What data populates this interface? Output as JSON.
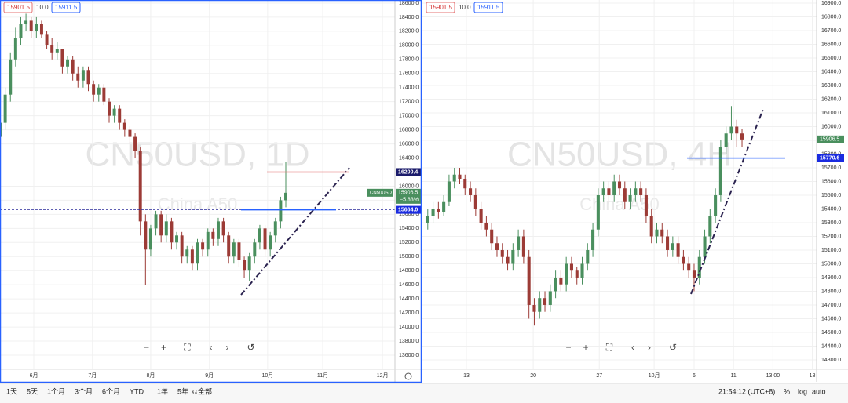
{
  "toolbar": {
    "ranges": [
      "1天",
      "5天",
      "1个月",
      "3个月",
      "6个月",
      "YTD",
      "1年",
      "5年",
      "全部"
    ],
    "time": "21:54:12 (UTC+8)",
    "scale_options": [
      "%",
      "log",
      "auto"
    ]
  },
  "chart_data": [
    {
      "type": "candlestick",
      "title": "CN50USD, 1D",
      "subtitle": "China A50",
      "symbol_tag": "CN50USD",
      "bid": "15901.5",
      "spread": "10.0",
      "ask": "15911.5",
      "last": 15906.5,
      "change_label": "−5.83%",
      "up_color": "#4a8f5e",
      "down_color": "#9c3b36",
      "grid": true,
      "levels": [
        {
          "value": 16200.4,
          "label": "16200.4",
          "segment_color": "#e57373"
        },
        {
          "value": 15664,
          "label": "15664.0",
          "segment_color": "#2962ff"
        }
      ],
      "xlim": [
        0,
        76
      ],
      "ylim": [
        13366,
        18644
      ],
      "xticks": [
        {
          "value": 6.5,
          "label": "6月"
        },
        {
          "value": 17.8,
          "label": "7月"
        },
        {
          "value": 29,
          "label": "8月"
        },
        {
          "value": 40.3,
          "label": "9月"
        },
        {
          "value": 51.5,
          "label": "10月"
        },
        {
          "value": 62.1,
          "label": "11月"
        },
        {
          "value": 73.6,
          "label": "12月"
        }
      ],
      "yticks": [
        {
          "value": 13600,
          "label": "13600.0"
        },
        {
          "value": 13800,
          "label": "13800.0"
        },
        {
          "value": 14000,
          "label": "14000.0"
        },
        {
          "value": 14200,
          "label": "14200.0"
        },
        {
          "value": 14400,
          "label": "14400.0"
        },
        {
          "value": 14600,
          "label": "14600.0"
        },
        {
          "value": 14800,
          "label": "14800.0"
        },
        {
          "value": 15000,
          "label": "15000.0"
        },
        {
          "value": 15200,
          "label": "15200.0"
        },
        {
          "value": 15400,
          "label": "15400.0"
        },
        {
          "value": 15600,
          "label": "15600.0"
        },
        {
          "value": 15800,
          "label": "15800.0"
        },
        {
          "value": 16000,
          "label": "16000.0"
        },
        {
          "value": 16200,
          "label": "16200.0"
        },
        {
          "value": 16400,
          "label": "16400.0"
        },
        {
          "value": 16600,
          "label": "16600.0"
        },
        {
          "value": 16800,
          "label": "16800.0"
        },
        {
          "value": 17000,
          "label": "17000.0"
        },
        {
          "value": 17200,
          "label": "17200.0"
        },
        {
          "value": 17400,
          "label": "17400.0"
        },
        {
          "value": 17600,
          "label": "17600.0"
        },
        {
          "value": 17800,
          "label": "17800.0"
        },
        {
          "value": 18000,
          "label": "18000.0"
        },
        {
          "value": 18200,
          "label": "18200.0"
        },
        {
          "value": 18400,
          "label": "18400.0"
        },
        {
          "value": 18600,
          "label": "18600.0"
        }
      ],
      "open": [
        16700,
        16900,
        17300,
        17800,
        18100,
        18300,
        18350,
        18200,
        18300,
        18150,
        18000,
        17900,
        17950,
        17700,
        17800,
        17600,
        17500,
        17650,
        17450,
        17300,
        17400,
        17200,
        17000,
        17100,
        16900,
        16800,
        16700,
        16500,
        15500,
        15100,
        15400,
        15600,
        15300,
        15500,
        15200,
        15300,
        15000,
        15100,
        14900,
        15200,
        15100,
        15350,
        15250,
        15500,
        15300,
        15000,
        15200,
        14950,
        14800,
        15000,
        15200,
        15400,
        15100,
        15300,
        15500,
        15800
      ],
      "high": [
        17000,
        17400,
        17900,
        18250,
        18400,
        18450,
        18400,
        18400,
        18350,
        18200,
        18100,
        18050,
        17950,
        17850,
        17850,
        17700,
        17700,
        17700,
        17500,
        17450,
        17450,
        17250,
        17150,
        17150,
        16950,
        16850,
        16750,
        16550,
        15600,
        15450,
        15650,
        15650,
        15600,
        15550,
        15350,
        15350,
        15150,
        15150,
        15250,
        15250,
        15400,
        15400,
        15550,
        15550,
        15350,
        15250,
        15250,
        15000,
        15050,
        15250,
        15450,
        15450,
        15350,
        15550,
        15850,
        16350
      ],
      "low": [
        16600,
        16800,
        17200,
        17700,
        18000,
        18200,
        18100,
        18100,
        18100,
        17950,
        17800,
        17800,
        17600,
        17600,
        17500,
        17400,
        17400,
        17350,
        17200,
        17200,
        17150,
        16900,
        16900,
        16800,
        16700,
        16600,
        16400,
        15300,
        14600,
        15000,
        15300,
        15200,
        15200,
        15100,
        15100,
        14900,
        14900,
        14800,
        14800,
        15000,
        15000,
        15150,
        15150,
        15200,
        14900,
        14900,
        14850,
        14700,
        14650,
        14900,
        15100,
        15000,
        15000,
        15200,
        15400,
        15700
      ],
      "close": [
        16900,
        17300,
        17800,
        18100,
        18300,
        18350,
        18200,
        18300,
        18150,
        18000,
        17900,
        17950,
        17700,
        17800,
        17600,
        17500,
        17650,
        17450,
        17300,
        17400,
        17200,
        17000,
        17100,
        16900,
        16800,
        16700,
        16500,
        15500,
        15100,
        15400,
        15600,
        15300,
        15500,
        15200,
        15300,
        15000,
        15100,
        14900,
        15200,
        15100,
        15350,
        15250,
        15500,
        15300,
        15000,
        15200,
        14950,
        14800,
        15000,
        15200,
        15400,
        15100,
        15300,
        15500,
        15800,
        15906.5
      ]
    },
    {
      "type": "candlestick",
      "title": "CN50USD, 4H",
      "subtitle": "China A50",
      "bid": "15901.5",
      "spread": "10.0",
      "ask": "15911.5",
      "last": 15906.5,
      "up_color": "#4a8f5e",
      "down_color": "#9c3b36",
      "grid": true,
      "levels": [
        {
          "value": 15770.6,
          "label": "15770.6",
          "segment_color": "#2962ff"
        }
      ],
      "xlim": [
        -1,
        73
      ],
      "ylim": [
        14214,
        16923
      ],
      "xticks": [
        {
          "value": 7.25,
          "label": "13"
        },
        {
          "value": 19.8,
          "label": "20"
        },
        {
          "value": 32.2,
          "label": "27"
        },
        {
          "value": 42.5,
          "label": "10月"
        },
        {
          "value": 50,
          "label": "6"
        },
        {
          "value": 57.4,
          "label": "11"
        },
        {
          "value": 64.8,
          "label": "13:00"
        },
        {
          "value": 72.2,
          "label": "18"
        }
      ],
      "yticks": [
        {
          "value": 14300,
          "label": "14300.0"
        },
        {
          "value": 14400,
          "label": "14400.0"
        },
        {
          "value": 14500,
          "label": "14500.0"
        },
        {
          "value": 14600,
          "label": "14600.0"
        },
        {
          "value": 14700,
          "label": "14700.0"
        },
        {
          "value": 14800,
          "label": "14800.0"
        },
        {
          "value": 14900,
          "label": "14900.0"
        },
        {
          "value": 15000,
          "label": "15000.0"
        },
        {
          "value": 15100,
          "label": "15100.0"
        },
        {
          "value": 15200,
          "label": "15200.0"
        },
        {
          "value": 15300,
          "label": "15300.0"
        },
        {
          "value": 15400,
          "label": "15400.0"
        },
        {
          "value": 15500,
          "label": "15500.0"
        },
        {
          "value": 15600,
          "label": "15600.0"
        },
        {
          "value": 15700,
          "label": "15700.0"
        },
        {
          "value": 15800,
          "label": "15800.0"
        },
        {
          "value": 15900,
          "label": "15900.0"
        },
        {
          "value": 16000,
          "label": "16000.0"
        },
        {
          "value": 16100,
          "label": "16100.0"
        },
        {
          "value": 16200,
          "label": "16200.0"
        },
        {
          "value": 16300,
          "label": "16300.0"
        },
        {
          "value": 16400,
          "label": "16400.0"
        },
        {
          "value": 16500,
          "label": "16500.0"
        },
        {
          "value": 16600,
          "label": "16600.0"
        },
        {
          "value": 16700,
          "label": "16700.0"
        },
        {
          "value": 16800,
          "label": "16800.0"
        },
        {
          "value": 16900,
          "label": "16900.0"
        }
      ],
      "open": [
        15300,
        15350,
        15400,
        15380,
        15450,
        15600,
        15650,
        15620,
        15550,
        15500,
        15400,
        15300,
        15250,
        15150,
        15100,
        15050,
        15000,
        15100,
        15200,
        15050,
        14700,
        14650,
        14750,
        14700,
        14800,
        14900,
        14850,
        15000,
        14950,
        14900,
        15000,
        15100,
        15250,
        15500,
        15550,
        15500,
        15600,
        15550,
        15450,
        15500,
        15550,
        15500,
        15350,
        15200,
        15250,
        15200,
        15100,
        15150,
        15050,
        15000,
        14950,
        14900,
        15050,
        15200,
        15350,
        15500,
        15850,
        15950,
        16000,
        15950
      ],
      "high": [
        15400,
        15450,
        15450,
        15500,
        15650,
        15700,
        15700,
        15650,
        15600,
        15550,
        15450,
        15350,
        15300,
        15200,
        15150,
        15100,
        15150,
        15250,
        15250,
        15100,
        14750,
        14800,
        14800,
        14850,
        14950,
        14950,
        15050,
        15050,
        14980,
        15050,
        15150,
        15300,
        15550,
        15600,
        15600,
        15650,
        15650,
        15600,
        15550,
        15600,
        15600,
        15550,
        15400,
        15300,
        15300,
        15250,
        15200,
        15200,
        15100,
        15050,
        15000,
        15100,
        15250,
        15400,
        15550,
        15900,
        16000,
        16150,
        16050,
        15980
      ],
      "low": [
        15250,
        15300,
        15330,
        15350,
        15420,
        15550,
        15580,
        15500,
        15450,
        15350,
        15250,
        15200,
        15100,
        15050,
        15000,
        14950,
        14950,
        15050,
        15000,
        14600,
        14550,
        14600,
        14650,
        14650,
        14750,
        14800,
        14800,
        14900,
        14850,
        14850,
        14950,
        15050,
        15200,
        15450,
        15450,
        15450,
        15500,
        15400,
        15400,
        15450,
        15450,
        15300,
        15150,
        15150,
        15150,
        15050,
        15050,
        15000,
        14950,
        14900,
        14800,
        14850,
        15000,
        15150,
        15300,
        15450,
        15800,
        15900,
        15850,
        15850
      ],
      "close": [
        15350,
        15400,
        15380,
        15450,
        15600,
        15650,
        15620,
        15550,
        15500,
        15400,
        15300,
        15250,
        15150,
        15100,
        15050,
        15000,
        15100,
        15200,
        15050,
        14700,
        14650,
        14750,
        14700,
        14800,
        14900,
        14850,
        15000,
        14950,
        14900,
        15000,
        15100,
        15250,
        15500,
        15550,
        15500,
        15600,
        15550,
        15450,
        15500,
        15550,
        15500,
        15350,
        15200,
        15250,
        15200,
        15100,
        15150,
        15050,
        15000,
        14950,
        14900,
        15050,
        15200,
        15350,
        15500,
        15850,
        15950,
        16000,
        15950,
        15906.5
      ]
    }
  ]
}
